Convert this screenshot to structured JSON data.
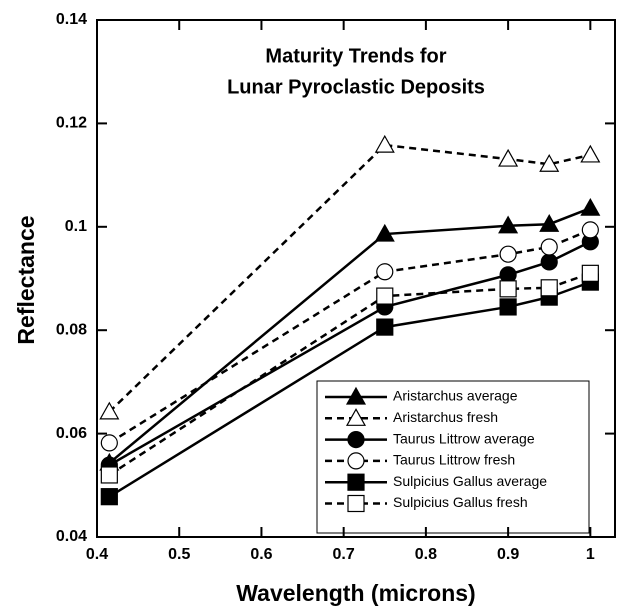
{
  "chart_data": {
    "type": "line",
    "title": [
      "Maturity Trends for",
      "Lunar Pyroclastic Deposits"
    ],
    "xlabel": "Wavelength (microns)",
    "ylabel": "Reflectance",
    "x": [
      0.415,
      0.75,
      0.9,
      0.95,
      1.0
    ],
    "xlim": [
      0.4,
      1.03
    ],
    "xticks": [
      0.4,
      0.5,
      0.6,
      0.7,
      0.8,
      0.9,
      1
    ],
    "ylim": [
      0.04,
      0.14
    ],
    "yticks": [
      0.04,
      0.06,
      0.08,
      0.1,
      0.12,
      0.14
    ],
    "legend": "lower right",
    "series": [
      {
        "name": "Aristarchus average",
        "color": "#000000",
        "marker": "triangle",
        "filled": true,
        "dashed": false,
        "values": [
          0.0543,
          0.0986,
          0.1002,
          0.1005,
          0.1036
        ]
      },
      {
        "name": "Aristarchus fresh",
        "color": "#000000",
        "marker": "triangle",
        "filled": false,
        "dashed": true,
        "values": [
          0.0642,
          0.1158,
          0.1131,
          0.1121,
          0.1139
        ]
      },
      {
        "name": "Taurus Littrow average",
        "color": "#000000",
        "marker": "circle",
        "filled": true,
        "dashed": false,
        "values": [
          0.0539,
          0.0845,
          0.0907,
          0.0932,
          0.0971
        ]
      },
      {
        "name": "Taurus Littrow fresh",
        "color": "#000000",
        "marker": "circle",
        "filled": false,
        "dashed": true,
        "values": [
          0.0582,
          0.0913,
          0.0947,
          0.0961,
          0.0994
        ]
      },
      {
        "name": "Sulpicius Gallus average",
        "color": "#000000",
        "marker": "square",
        "filled": true,
        "dashed": false,
        "values": [
          0.0478,
          0.0806,
          0.0845,
          0.0864,
          0.0893
        ]
      },
      {
        "name": "Sulpicius Gallus fresh",
        "color": "#000000",
        "marker": "square",
        "filled": false,
        "dashed": true,
        "values": [
          0.052,
          0.0866,
          0.088,
          0.0882,
          0.091
        ]
      }
    ]
  }
}
